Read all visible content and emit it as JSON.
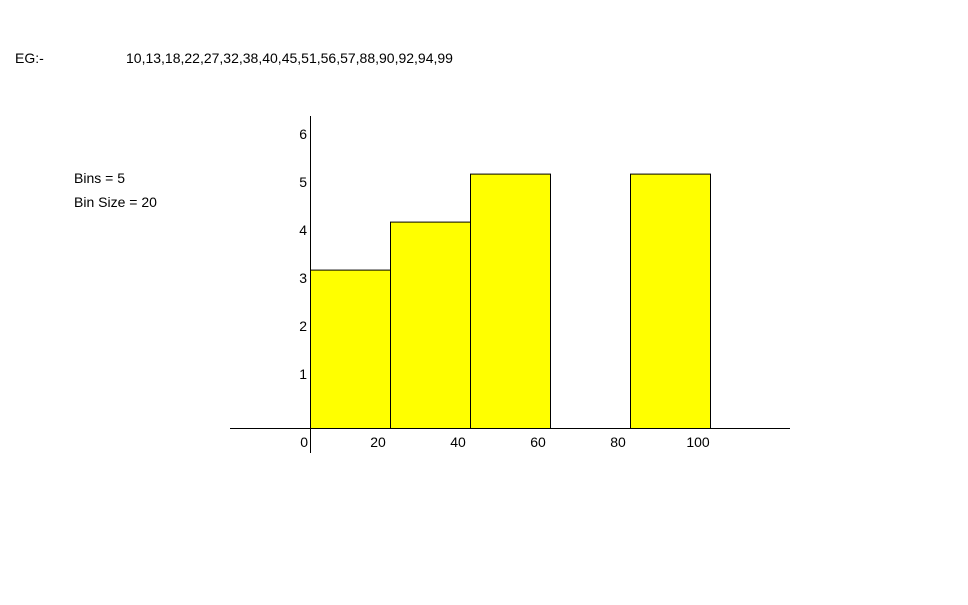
{
  "example": {
    "label": "EG:-",
    "values_text": "10,13,18,22,27,32,38,40,45,51,56,57,88,90,92,94,99"
  },
  "notes": {
    "bins": "Bins = 5",
    "bin_size": "Bin Size = 20"
  },
  "chart_data": {
    "type": "bar",
    "bins": [
      {
        "start": 0,
        "end": 20,
        "count": 3.3
      },
      {
        "start": 20,
        "end": 40,
        "count": 4.3
      },
      {
        "start": 40,
        "end": 60,
        "count": 5.3
      },
      {
        "start": 60,
        "end": 80,
        "count": 0
      },
      {
        "start": 80,
        "end": 100,
        "count": 5.3
      }
    ],
    "x_ticks": [
      0,
      20,
      40,
      60,
      80,
      100
    ],
    "y_ticks": [
      1,
      2,
      3,
      4,
      5,
      6
    ],
    "xlim": [
      0,
      120
    ],
    "ylim": [
      0,
      6.5
    ],
    "bar_color": "#FFFF00",
    "edge_color": "#000000",
    "grid": false,
    "title": "",
    "xlabel": "",
    "ylabel": ""
  }
}
